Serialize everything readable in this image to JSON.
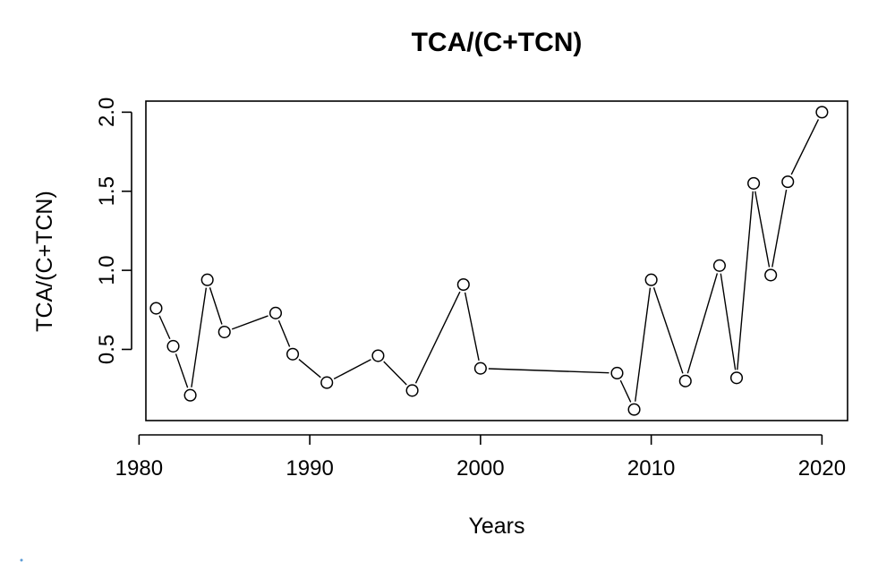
{
  "chart_data": {
    "type": "line",
    "style": "points-and-line-segments",
    "title": "TCA/(C+TCN)",
    "xlabel": "Years",
    "ylabel": "TCA/(C+TCN)",
    "xticks": [
      1980,
      1990,
      2000,
      2010,
      2020
    ],
    "yticks": [
      0.5,
      1.0,
      1.5,
      2.0
    ],
    "ytick_labels": [
      "0.5",
      "1.0",
      "1.5",
      "2.0"
    ],
    "xlim": [
      1980.4,
      2021.5
    ],
    "ylim": [
      0.05,
      2.07
    ],
    "grid": false,
    "legend": false,
    "point_color": "#ffffff",
    "line_color": "#000000",
    "series": [
      {
        "x": [
          1981,
          1982,
          1983,
          1984,
          1985,
          1988,
          1989,
          1991,
          1994,
          1996,
          1999,
          2000,
          2008,
          2009,
          2010,
          2012,
          2014,
          2015,
          2016,
          2017,
          2018,
          2020
        ],
        "y": [
          0.76,
          0.52,
          0.21,
          0.94,
          0.61,
          0.73,
          0.47,
          0.29,
          0.46,
          0.24,
          0.91,
          0.38,
          0.35,
          0.12,
          0.94,
          0.3,
          1.03,
          0.32,
          1.55,
          0.97,
          1.56,
          2.0
        ]
      }
    ]
  }
}
